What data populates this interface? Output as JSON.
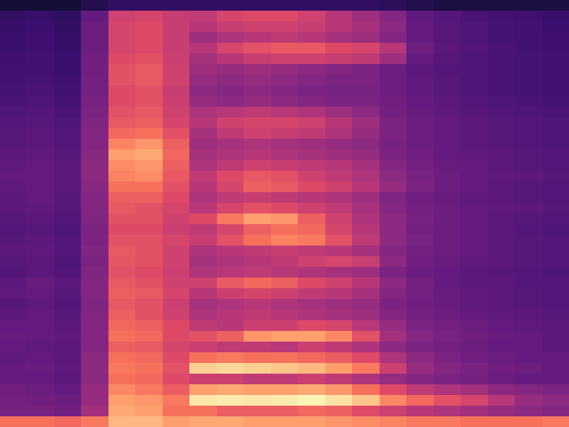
{
  "chart_data": {
    "type": "heatmap",
    "color": "magma",
    "tick_labels": false,
    "zlim": [
      0,
      100
    ],
    "cells": [
      [
        70,
        70,
        68,
        72,
        85,
        85,
        80,
        82,
        82,
        80,
        80,
        80,
        78,
        76,
        74,
        72,
        72,
        70,
        70,
        70,
        72
      ],
      [
        35,
        35,
        33,
        45,
        82,
        80,
        70,
        70,
        65,
        65,
        65,
        68,
        66,
        60,
        55,
        50,
        48,
        45,
        42,
        40,
        38
      ],
      [
        34,
        33,
        32,
        42,
        80,
        78,
        72,
        95,
        96,
        95,
        96,
        98,
        94,
        88,
        75,
        68,
        62,
        58,
        50,
        42,
        40
      ],
      [
        33,
        32,
        30,
        42,
        75,
        72,
        65,
        80,
        82,
        80,
        80,
        82,
        78,
        70,
        60,
        52,
        48,
        45,
        40,
        38,
        36
      ],
      [
        30,
        30,
        28,
        40,
        70,
        68,
        60,
        55,
        55,
        52,
        52,
        55,
        52,
        48,
        42,
        38,
        36,
        34,
        32,
        30,
        30
      ],
      [
        30,
        31,
        29,
        40,
        72,
        70,
        62,
        90,
        92,
        90,
        88,
        85,
        80,
        72,
        55,
        42,
        38,
        35,
        33,
        32,
        30
      ],
      [
        29,
        30,
        28,
        40,
        70,
        68,
        60,
        70,
        72,
        70,
        70,
        68,
        65,
        60,
        48,
        40,
        36,
        33,
        32,
        30,
        30
      ],
      [
        30,
        29,
        28,
        38,
        66,
        64,
        58,
        55,
        52,
        52,
        50,
        55,
        52,
        48,
        40,
        36,
        34,
        32,
        30,
        30,
        28
      ],
      [
        31,
        30,
        29,
        38,
        70,
        68,
        60,
        62,
        66,
        78,
        80,
        80,
        75,
        62,
        45,
        38,
        35,
        33,
        31,
        30,
        28
      ],
      [
        30,
        30,
        28,
        38,
        68,
        66,
        60,
        52,
        50,
        55,
        55,
        60,
        58,
        50,
        42,
        36,
        34,
        32,
        30,
        29,
        28
      ],
      [
        28,
        30,
        27,
        38,
        66,
        62,
        56,
        48,
        50,
        52,
        50,
        48,
        46,
        44,
        38,
        34,
        32,
        30,
        29,
        28,
        27
      ],
      [
        27,
        29,
        26,
        37,
        64,
        62,
        55,
        46,
        48,
        50,
        48,
        46,
        44,
        42,
        36,
        33,
        31,
        29,
        28,
        27,
        26
      ],
      [
        29,
        30,
        27,
        38,
        66,
        64,
        58,
        50,
        55,
        58,
        56,
        52,
        50,
        46,
        38,
        34,
        31,
        29,
        28,
        27,
        26
      ],
      [
        28,
        31,
        28,
        38,
        64,
        62,
        56,
        56,
        64,
        68,
        66,
        60,
        56,
        50,
        40,
        34,
        30,
        28,
        28,
        26,
        26
      ],
      [
        26,
        28,
        26,
        37,
        62,
        60,
        55,
        48,
        50,
        52,
        50,
        48,
        46,
        44,
        36,
        32,
        30,
        28,
        27,
        26,
        25
      ],
      [
        27,
        28,
        25,
        36,
        63,
        62,
        56,
        46,
        48,
        50,
        52,
        56,
        58,
        54,
        40,
        33,
        31,
        29,
        28,
        27,
        26
      ],
      [
        28,
        29,
        26,
        37,
        64,
        62,
        56,
        48,
        50,
        52,
        54,
        52,
        50,
        46,
        38,
        34,
        32,
        30,
        28,
        27,
        26
      ],
      [
        27,
        28,
        26,
        36,
        62,
        62,
        58,
        54,
        62,
        70,
        74,
        72,
        62,
        52,
        40,
        35,
        32,
        30,
        28,
        27,
        26
      ],
      [
        26,
        27,
        25,
        36,
        60,
        60,
        55,
        52,
        58,
        66,
        70,
        68,
        58,
        50,
        40,
        34,
        32,
        30,
        28,
        26,
        25
      ],
      [
        27,
        28,
        26,
        37,
        62,
        62,
        56,
        60,
        72,
        80,
        78,
        66,
        56,
        48,
        40,
        35,
        32,
        30,
        28,
        27,
        26
      ],
      [
        28,
        29,
        27,
        38,
        64,
        62,
        58,
        50,
        58,
        62,
        60,
        56,
        52,
        46,
        38,
        34,
        32,
        30,
        29,
        28,
        27
      ],
      [
        28,
        30,
        27,
        38,
        66,
        66,
        60,
        48,
        52,
        54,
        52,
        50,
        48,
        44,
        37,
        33,
        31,
        29,
        28,
        27,
        26
      ],
      [
        29,
        30,
        28,
        39,
        70,
        70,
        62,
        50,
        58,
        66,
        64,
        60,
        56,
        50,
        42,
        36,
        32,
        30,
        28,
        27,
        26
      ],
      [
        30,
        30,
        28,
        40,
        74,
        76,
        64,
        52,
        60,
        64,
        62,
        56,
        52,
        48,
        40,
        35,
        32,
        30,
        29,
        28,
        27
      ],
      [
        29,
        30,
        28,
        40,
        76,
        78,
        66,
        48,
        52,
        56,
        54,
        52,
        50,
        46,
        38,
        34,
        31,
        30,
        28,
        27,
        26
      ],
      [
        28,
        29,
        27,
        39,
        80,
        82,
        68,
        46,
        48,
        50,
        48,
        46,
        44,
        42,
        36,
        33,
        30,
        29,
        28,
        27,
        26
      ],
      [
        27,
        28,
        26,
        38,
        74,
        78,
        66,
        44,
        46,
        48,
        46,
        44,
        42,
        40,
        35,
        32,
        30,
        28,
        27,
        26,
        25
      ],
      [
        27,
        28,
        26,
        38,
        68,
        70,
        62,
        46,
        52,
        56,
        54,
        52,
        48,
        42,
        36,
        32,
        30,
        28,
        27,
        26,
        25
      ],
      [
        26,
        27,
        25,
        37,
        64,
        66,
        58,
        50,
        56,
        58,
        58,
        56,
        50,
        44,
        36,
        32,
        30,
        28,
        27,
        26,
        25
      ],
      [
        25,
        26,
        24,
        36,
        62,
        64,
        56,
        48,
        50,
        52,
        50,
        48,
        44,
        40,
        34,
        31,
        29,
        27,
        26,
        25,
        24
      ],
      [
        24,
        25,
        23,
        35,
        60,
        62,
        55,
        42,
        40,
        42,
        40,
        38,
        36,
        36,
        33,
        30,
        28,
        26,
        25,
        24,
        23
      ],
      [
        23,
        24,
        22,
        34,
        60,
        62,
        54,
        40,
        38,
        40,
        38,
        36,
        35,
        35,
        32,
        29,
        27,
        25,
        24,
        23,
        22
      ],
      [
        22,
        23,
        21,
        34,
        62,
        64,
        56,
        42,
        40,
        42,
        40,
        38,
        36,
        36,
        32,
        29,
        27,
        25,
        24,
        23,
        22
      ],
      [
        22,
        22,
        20,
        33,
        62,
        64,
        56,
        44,
        42,
        44,
        42,
        40,
        38,
        36,
        32,
        28,
        26,
        25,
        24,
        23,
        22
      ],
      [
        21,
        22,
        20,
        33,
        60,
        62,
        55,
        46,
        50,
        54,
        56,
        56,
        54,
        52,
        44,
        30,
        27,
        25,
        24,
        23,
        22
      ],
      [
        20,
        21,
        19,
        32,
        58,
        60,
        54,
        50,
        58,
        62,
        64,
        64,
        60,
        58,
        50,
        32,
        28,
        26,
        24,
        22,
        21
      ],
      [
        20,
        21,
        19,
        32,
        58,
        60,
        54,
        44,
        48,
        50,
        52,
        50,
        46,
        44,
        38,
        30,
        27,
        25,
        23,
        22,
        21
      ],
      [
        19,
        20,
        18,
        32,
        58,
        60,
        54,
        50,
        54,
        56,
        56,
        54,
        50,
        46,
        40,
        30,
        27,
        25,
        23,
        22,
        20
      ],
      [
        18,
        19,
        17,
        30,
        56,
        58,
        54,
        52,
        58,
        60,
        60,
        56,
        50,
        44,
        38,
        29,
        26,
        24,
        22,
        21,
        19
      ],
      [
        10,
        10,
        10,
        14,
        18,
        18,
        18,
        18,
        18,
        18,
        18,
        18,
        18,
        18,
        16,
        14,
        12,
        12,
        12,
        12,
        12
      ]
    ]
  }
}
